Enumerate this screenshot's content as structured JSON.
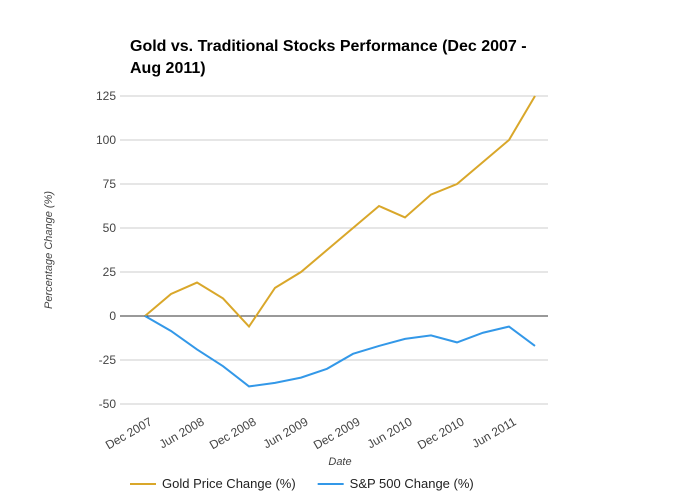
{
  "chart_data": {
    "type": "line",
    "title": "Gold vs. Traditional Stocks Performance (Dec 2007 - Aug 2011)",
    "x_label": "Date",
    "y_label": "Percentage Change (%)",
    "categories": [
      "Dec 2007",
      null,
      "Jun 2008",
      null,
      "Dec 2008",
      null,
      "Jun 2009",
      null,
      "Dec 2009",
      null,
      "Jun 2010",
      null,
      "Dec 2010",
      null,
      "Jun 2011",
      null
    ],
    "series": [
      {
        "name": "Gold Price Change (%)",
        "color": "#d9a72a",
        "values": [
          0,
          12.5,
          19,
          10,
          -6,
          16,
          25,
          37.5,
          50,
          62.5,
          56,
          69,
          75,
          87.5,
          100,
          125
        ]
      },
      {
        "name": "S&P 500 Change (%)",
        "color": "#3398e8",
        "values": [
          0,
          -8.5,
          -19,
          -28.5,
          -40,
          -38,
          -35,
          -30,
          -21.5,
          -17,
          -13,
          -11,
          -15,
          -9.5,
          -6,
          -17
        ]
      }
    ],
    "ylim": [
      -50,
      125
    ],
    "yticks": [
      -50,
      -25,
      0,
      25,
      50,
      75,
      100,
      125
    ],
    "grid": true,
    "legend": "bottom"
  }
}
